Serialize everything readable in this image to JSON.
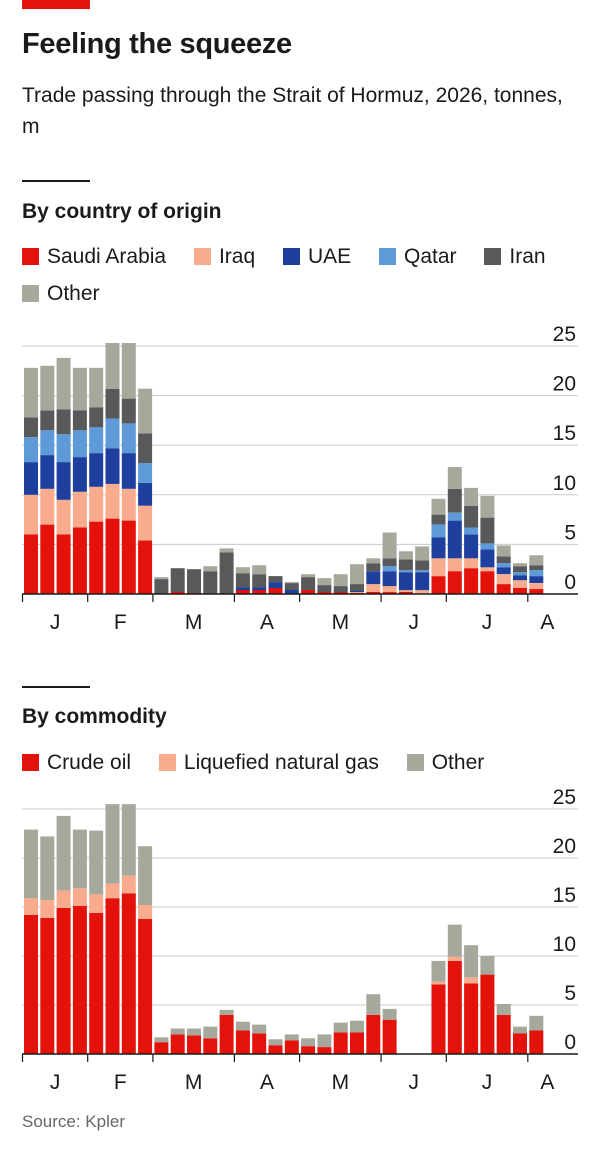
{
  "title": "Feeling the squeeze",
  "subtitle": "Trade passing through the Strait of Hormuz, 2026, tonnes, m",
  "source": "Source: Kpler",
  "colors": {
    "Saudi Arabia": "#e3120b",
    "Iraq": "#f8ab8d",
    "UAE": "#1f3f9e",
    "Qatar": "#5e9ad8",
    "Iran": "#58595b",
    "Other": "#a7a89c",
    "Crude oil": "#e3120b",
    "Liquefied natural gas": "#f8ab8d"
  },
  "chart_data": [
    {
      "type": "bar",
      "stacked": true,
      "title": "By country of origin",
      "x_ticks": [
        "J",
        "F",
        "M",
        "A",
        "M",
        "J",
        "J",
        "A"
      ],
      "y_ticks": [
        0,
        5,
        10,
        15,
        20,
        25
      ],
      "ylim": [
        0,
        25
      ],
      "y_axis_side": "right",
      "grid": true,
      "legend": "top",
      "weeks": 36,
      "series": [
        {
          "name": "Saudi Arabia",
          "values": [
            6.0,
            7.0,
            6.0,
            6.7,
            7.3,
            7.6,
            7.4,
            5.4,
            0,
            0.2,
            0.1,
            0,
            0,
            0.4,
            0.4,
            0.6,
            0,
            0.4,
            0.2,
            0.2,
            0.1,
            0.2,
            0.2,
            0.2,
            0,
            1.8,
            2.3,
            2.6,
            2.3,
            1.0,
            0.6,
            0.5,
            0,
            0,
            0,
            0
          ]
        },
        {
          "name": "Iraq",
          "values": [
            4.0,
            3.6,
            3.5,
            3.6,
            3.5,
            3.5,
            3.2,
            3.5,
            0,
            0,
            0,
            0,
            0,
            0,
            0,
            0,
            0,
            0,
            0,
            0,
            0.1,
            0.8,
            0.6,
            0.2,
            0.4,
            1.8,
            1.3,
            1.0,
            0.4,
            1.0,
            0.8,
            0.6,
            0,
            0,
            0,
            0
          ]
        },
        {
          "name": "UAE",
          "values": [
            3.3,
            3.4,
            3.8,
            3.5,
            3.4,
            3.6,
            3.6,
            2.3,
            0,
            0,
            0,
            0,
            0,
            0.3,
            0.3,
            0.6,
            0.4,
            0,
            0,
            0,
            0.1,
            1.3,
            1.5,
            1.8,
            1.8,
            2.1,
            3.8,
            2.4,
            1.8,
            0.7,
            0.5,
            0.7,
            0,
            0,
            0,
            0
          ]
        },
        {
          "name": "Qatar",
          "values": [
            2.5,
            2.5,
            2.8,
            2.7,
            2.6,
            3.0,
            3.0,
            2.0,
            0,
            0,
            0,
            0,
            0,
            0,
            0,
            0,
            0,
            0,
            0,
            0,
            0,
            0,
            0.5,
            0.2,
            0.2,
            1.3,
            0.8,
            0.7,
            0.6,
            0.4,
            0.3,
            0.6,
            0,
            0,
            0,
            0
          ]
        },
        {
          "name": "Iran",
          "values": [
            2.0,
            2.0,
            2.5,
            2.0,
            2.0,
            3.0,
            2.5,
            3.0,
            1.5,
            2.4,
            2.4,
            2.3,
            4.2,
            1.4,
            1.3,
            0.6,
            0.7,
            1.3,
            0.7,
            0.6,
            0.7,
            0.8,
            0.8,
            1.1,
            1.0,
            1.0,
            2.4,
            2.2,
            2.6,
            0.7,
            0.6,
            0.5,
            0,
            0,
            0,
            0
          ]
        },
        {
          "name": "Other",
          "values": [
            5.0,
            4.5,
            5.2,
            4.3,
            4.0,
            4.6,
            5.6,
            4.5,
            0.2,
            0,
            0,
            0.5,
            0.4,
            0.6,
            0.9,
            0,
            0.1,
            0.3,
            0.7,
            1.2,
            2.0,
            0.5,
            2.6,
            0.8,
            1.4,
            1.6,
            2.2,
            1.8,
            2.2,
            1.1,
            0.3,
            1.0,
            0,
            0,
            0,
            0
          ]
        }
      ]
    },
    {
      "type": "bar",
      "stacked": true,
      "title": "By commodity",
      "x_ticks": [
        "J",
        "F",
        "M",
        "A",
        "M",
        "J",
        "J",
        "A"
      ],
      "y_ticks": [
        0,
        5,
        10,
        15,
        20,
        25
      ],
      "ylim": [
        0,
        25
      ],
      "y_axis_side": "right",
      "grid": true,
      "legend": "top",
      "weeks": 36,
      "series": [
        {
          "name": "Crude oil",
          "values": [
            14.2,
            13.9,
            14.9,
            15.1,
            14.4,
            15.9,
            16.4,
            13.8,
            1.2,
            2.0,
            1.9,
            1.6,
            4.0,
            2.4,
            2.1,
            0.9,
            1.4,
            0.8,
            0.7,
            2.2,
            2.2,
            4.0,
            3.5,
            0,
            0,
            7.1,
            9.5,
            7.2,
            8.1,
            4.0,
            2.1,
            2.4,
            0,
            0,
            0,
            0
          ]
        },
        {
          "name": "Liquefied natural gas",
          "values": [
            1.7,
            1.8,
            1.8,
            1.8,
            1.9,
            1.5,
            1.8,
            1.4,
            0,
            0,
            0,
            0,
            0,
            0,
            0,
            0,
            0,
            0,
            0,
            0,
            0,
            0,
            0,
            0,
            0,
            0.3,
            0.4,
            0.6,
            0,
            0,
            0,
            0,
            0,
            0,
            0,
            0
          ]
        },
        {
          "name": "Other",
          "values": [
            7.0,
            6.5,
            7.6,
            6.0,
            6.5,
            8.1,
            7.3,
            6.0,
            0.5,
            0.6,
            0.7,
            1.2,
            0.5,
            0.9,
            0.9,
            0.6,
            0.6,
            0.8,
            1.3,
            1.0,
            1.2,
            2.1,
            1.1,
            0,
            0,
            2.1,
            3.3,
            3.3,
            1.9,
            1.1,
            0.7,
            1.5,
            0,
            0,
            0,
            0
          ]
        }
      ]
    }
  ]
}
